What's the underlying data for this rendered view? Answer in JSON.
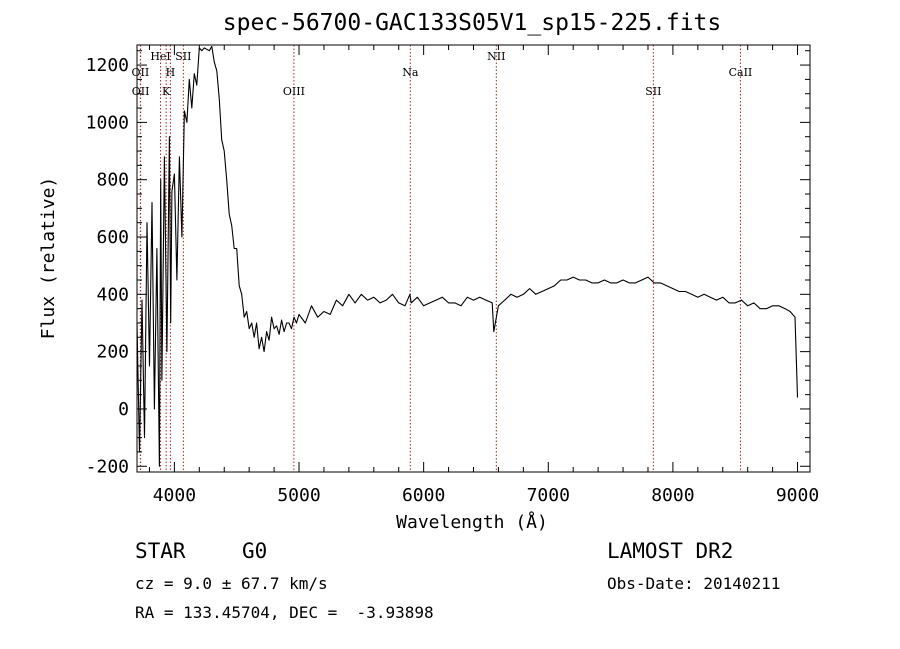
{
  "colors": {
    "spectrum": "#000000",
    "line_markers": "#b22222",
    "axes": "#000000",
    "background": "#ffffff"
  },
  "chart_data": {
    "type": "line",
    "title": "spec-56700-GAC133S05V1_sp15-225.fits",
    "xlabel": "Wavelength (Å)",
    "ylabel": "Flux (relative)",
    "xlim": [
      3700,
      9100
    ],
    "ylim": [
      -220,
      1270
    ],
    "xticks": [
      4000,
      5000,
      6000,
      7000,
      8000,
      9000
    ],
    "yticks": [
      -200,
      0,
      200,
      400,
      600,
      800,
      1000,
      1200
    ],
    "grid": false,
    "series": [
      {
        "x": [
          3700,
          3720,
          3740,
          3760,
          3780,
          3800,
          3820,
          3840,
          3860,
          3880,
          3890,
          3900,
          3920,
          3940,
          3960,
          3970,
          3980,
          4000,
          4020,
          4040,
          4060,
          4080,
          4100,
          4120,
          4140,
          4160,
          4180,
          4200,
          4220,
          4240,
          4260,
          4280,
          4300,
          4320,
          4340,
          4360,
          4380,
          4400,
          4420,
          4440,
          4460,
          4480,
          4500,
          4520,
          4540,
          4560,
          4580,
          4600,
          4620,
          4640,
          4660,
          4680,
          4700,
          4720,
          4740,
          4760,
          4780,
          4800,
          4820,
          4840,
          4860,
          4880,
          4900,
          4920,
          4940,
          4960,
          4980,
          5000,
          5050,
          5100,
          5150,
          5200,
          5250,
          5300,
          5350,
          5400,
          5450,
          5500,
          5550,
          5600,
          5650,
          5700,
          5750,
          5800,
          5850,
          5890,
          5900,
          5950,
          6000,
          6050,
          6100,
          6150,
          6200,
          6250,
          6300,
          6350,
          6400,
          6450,
          6500,
          6550,
          6563,
          6600,
          6650,
          6700,
          6750,
          6800,
          6850,
          6900,
          6950,
          7000,
          7050,
          7100,
          7150,
          7200,
          7250,
          7300,
          7350,
          7400,
          7450,
          7500,
          7550,
          7600,
          7650,
          7700,
          7750,
          7800,
          7850,
          7900,
          7950,
          8000,
          8050,
          8100,
          8150,
          8200,
          8250,
          8300,
          8350,
          8400,
          8450,
          8500,
          8550,
          8600,
          8650,
          8700,
          8750,
          8800,
          8850,
          8900,
          8940,
          8960,
          8980,
          9000
        ],
        "y": [
          300,
          -150,
          380,
          -100,
          650,
          150,
          720,
          0,
          560,
          -200,
          800,
          100,
          880,
          200,
          950,
          300,
          760,
          820,
          450,
          880,
          600,
          1040,
          1000,
          1150,
          1050,
          1170,
          1130,
          1260,
          1250,
          1260,
          1255,
          1250,
          1265,
          1210,
          1180,
          1080,
          940,
          900,
          800,
          680,
          640,
          560,
          560,
          430,
          400,
          320,
          340,
          280,
          300,
          250,
          300,
          210,
          250,
          200,
          270,
          240,
          320,
          280,
          290,
          260,
          310,
          270,
          300,
          300,
          280,
          320,
          300,
          330,
          300,
          360,
          320,
          340,
          330,
          380,
          360,
          400,
          370,
          400,
          380,
          390,
          370,
          380,
          400,
          370,
          360,
          400,
          370,
          390,
          360,
          370,
          380,
          390,
          370,
          370,
          360,
          390,
          380,
          390,
          380,
          370,
          270,
          360,
          380,
          400,
          390,
          400,
          420,
          400,
          410,
          420,
          430,
          450,
          450,
          460,
          450,
          450,
          440,
          440,
          450,
          440,
          440,
          450,
          440,
          440,
          450,
          460,
          440,
          440,
          430,
          420,
          410,
          410,
          400,
          390,
          400,
          390,
          380,
          390,
          370,
          370,
          380,
          360,
          370,
          350,
          350,
          360,
          360,
          350,
          340,
          330,
          320,
          40
        ]
      }
    ],
    "line_markers": [
      {
        "label": "OII",
        "wavelength": 3727,
        "row": 2
      },
      {
        "label": "OII",
        "wavelength": 3729,
        "row": 3
      },
      {
        "label": "HeI",
        "wavelength": 3889,
        "row": 1
      },
      {
        "label": "H",
        "wavelength": 3968,
        "row": 2
      },
      {
        "label": "K",
        "wavelength": 3934,
        "row": 3
      },
      {
        "label": "SII",
        "wavelength": 4072,
        "row": 1
      },
      {
        "label": "OIII",
        "wavelength": 4959,
        "row": 3
      },
      {
        "label": "Na",
        "wavelength": 5893,
        "row": 2
      },
      {
        "label": "NII",
        "wavelength": 6583,
        "row": 1
      },
      {
        "label": "SII",
        "wavelength": 7843,
        "row": 3
      },
      {
        "label": "CaII",
        "wavelength": 8542,
        "row": 2
      }
    ]
  },
  "info": {
    "class_label": "STAR",
    "subclass": "G0",
    "survey": "LAMOST DR2",
    "cz": "cz = 9.0 ± 67.7 km/s",
    "obs_date": "Obs-Date: 20140211",
    "coords": "RA = 133.45704, DEC =  -3.93898"
  }
}
